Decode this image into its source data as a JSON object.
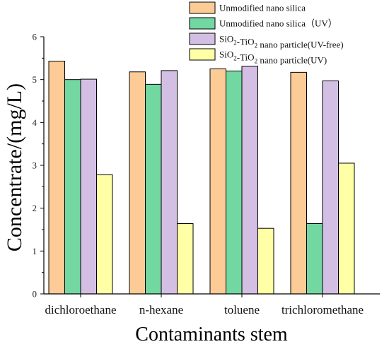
{
  "chart_data": {
    "type": "bar",
    "xlabel": "Contaminants stem",
    "ylabel": "Concentrate/(mg/L)",
    "ylim": [
      0,
      6
    ],
    "yticks": [
      0,
      1,
      2,
      3,
      4,
      5,
      6
    ],
    "categories": [
      "dichloroethane",
      "n-hexane",
      "toluene",
      "trichloromethane"
    ],
    "series": [
      {
        "name": "Unmodified nano silica",
        "name_parts": [
          "Unmodified nano silica"
        ],
        "color": "#fdcb96",
        "values": [
          5.43,
          5.18,
          5.25,
          5.17
        ]
      },
      {
        "name": "Unmodified nano silica（UV）",
        "name_parts": [
          "Unmodified nano silica（UV）"
        ],
        "color": "#72d7a1",
        "values": [
          5.0,
          4.89,
          5.2,
          1.64
        ]
      },
      {
        "name": "SiO2-TiO2 nano particle(UV-free)",
        "name_parts": [
          "SiO",
          "2",
          "-TiO",
          "2",
          " nano particle(UV-free)"
        ],
        "color": "#d3bfe3",
        "values": [
          5.01,
          5.21,
          5.31,
          4.97
        ]
      },
      {
        "name": "SiO2-TiO2 nano particle(UV)",
        "name_parts": [
          "SiO",
          "2",
          "-TiO",
          "2",
          " nano particle(UV)"
        ],
        "color": "#ffffa6",
        "values": [
          2.78,
          1.64,
          1.53,
          3.05
        ]
      }
    ],
    "legend_position": "top-right",
    "grid": false
  }
}
